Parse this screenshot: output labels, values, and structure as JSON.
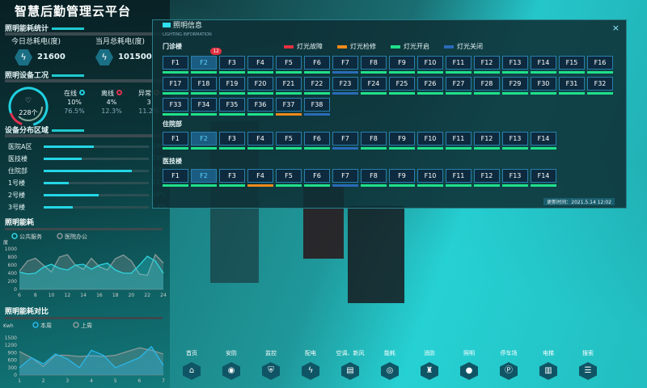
{
  "app": {
    "title": "智慧后勤管理云平台"
  },
  "colors": {
    "fault": "#e03040",
    "repair": "#f08a1a",
    "on": "#20e08a",
    "off": "#2a6bb8"
  },
  "left": {
    "energy_stat": {
      "title": "照明能耗统计",
      "today_label": "今日总耗电(度)",
      "today_value": "21600",
      "month_label": "当月总耗电(度)",
      "month_value": "101500",
      "icon": "lightning-icon"
    },
    "condition": {
      "title": "照明设备工况",
      "total": "228个",
      "items": [
        {
          "label": "在线",
          "value": "10%",
          "ratio": "76.5%",
          "color": "#1fd0e0"
        },
        {
          "label": "离线",
          "value": "4%",
          "ratio": "12.3%",
          "color": "#e03050"
        },
        {
          "label": "异常",
          "value": "3",
          "ratio": "11.2%",
          "color": "#a08a50"
        }
      ]
    },
    "distribution": {
      "title": "设备分布区域",
      "items": [
        {
          "label": "医院A区",
          "pct": 24,
          "text": "24%"
        },
        {
          "label": "医技楼",
          "pct": 18,
          "text": "18%"
        },
        {
          "label": "住院部",
          "pct": 42,
          "text": "42%"
        },
        {
          "label": "1号楼",
          "pct": 12,
          "text": "12%"
        },
        {
          "label": "2号楼",
          "pct": 26,
          "text": "26%"
        },
        {
          "label": "3号楼",
          "pct": 14,
          "text": "14%"
        }
      ]
    }
  },
  "chart_data": [
    {
      "type": "area",
      "title": "照明能耗",
      "ylabel": "度",
      "legend": [
        "公共服务",
        "医院办公"
      ],
      "ylim": [
        0,
        1000
      ],
      "yticks": [
        0,
        200,
        400,
        600,
        800,
        1000
      ],
      "x": [
        6,
        7,
        8,
        9,
        10,
        11,
        12,
        13,
        14,
        15,
        16,
        17,
        18,
        19,
        20,
        21,
        22,
        23,
        24
      ],
      "xticks": [
        6,
        8,
        10,
        12,
        14,
        16,
        18,
        20,
        22,
        24
      ],
      "series": [
        {
          "name": "公共服务",
          "color": "#2fd6e0",
          "values": [
            430,
            380,
            400,
            550,
            620,
            520,
            480,
            600,
            620,
            500,
            600,
            650,
            480,
            400,
            400,
            600,
            820,
            700,
            400
          ]
        },
        {
          "name": "医院办公",
          "color": "#8a9a9a",
          "values": [
            450,
            700,
            770,
            600,
            430,
            800,
            860,
            600,
            500,
            770,
            560,
            480,
            760,
            850,
            700,
            380,
            350,
            860,
            650
          ]
        }
      ]
    },
    {
      "type": "area",
      "title": "照明能耗对比",
      "ylabel": "Kwh",
      "legend": [
        "本周",
        "上周"
      ],
      "ylim": [
        0,
        1500
      ],
      "yticks": [
        0,
        300,
        600,
        900,
        1200,
        1500
      ],
      "x": [
        1,
        1.5,
        2,
        2.5,
        3,
        3.5,
        4,
        4.5,
        5,
        5.5,
        6,
        6.5,
        7
      ],
      "xticks": [
        1,
        2,
        3,
        4,
        5,
        6,
        7
      ],
      "series": [
        {
          "name": "本周",
          "color": "#2bb6e8",
          "values": [
            300,
            700,
            450,
            850,
            650,
            300,
            1000,
            800,
            300,
            500,
            700,
            1150,
            400
          ]
        },
        {
          "name": "上周",
          "color": "#8a9a9a",
          "values": [
            950,
            700,
            350,
            800,
            800,
            750,
            780,
            750,
            800,
            950,
            1100,
            1000,
            850
          ]
        }
      ]
    }
  ],
  "dialog": {
    "title": "照明信息",
    "subtitle": "LIGHTING INFORMATION",
    "close": "×",
    "legend": [
      {
        "label": "灯光故障",
        "key": "fault"
      },
      {
        "label": "灯光检修",
        "key": "repair"
      },
      {
        "label": "灯光开启",
        "key": "on"
      },
      {
        "label": "灯光关闭",
        "key": "off"
      }
    ],
    "groups": [
      {
        "name": "门诊楼",
        "floors": [
          "F1",
          "F2",
          "F3",
          "F4",
          "F5",
          "F6",
          "F7",
          "F8",
          "F9",
          "F10",
          "F11",
          "F12",
          "F13",
          "F14",
          "F15",
          "F16",
          "F17",
          "F18",
          "F19",
          "F20",
          "F21",
          "F22",
          "F23",
          "F24",
          "F25",
          "F26",
          "F27",
          "F28",
          "F29",
          "F30",
          "F31",
          "F32",
          "F33",
          "F34",
          "F35",
          "F36",
          "F37",
          "F38"
        ],
        "status": {
          "F7": "off",
          "F23": "off",
          "F37": "repair",
          "F38": "off"
        },
        "selected": "F2",
        "badge": "12"
      },
      {
        "name": "住院部",
        "floors": [
          "F1",
          "F2",
          "F3",
          "F4",
          "F5",
          "F6",
          "F7",
          "F8",
          "F9",
          "F10",
          "F11",
          "F12",
          "F13",
          "F14"
        ],
        "status": {
          "F7": "off"
        },
        "selected": "F2"
      },
      {
        "name": "医技楼",
        "floors": [
          "F1",
          "F2",
          "F3",
          "F4",
          "F5",
          "F6",
          "F7",
          "F8",
          "F9",
          "F10",
          "F11",
          "F12",
          "F13",
          "F14"
        ],
        "status": {
          "F4": "repair",
          "F7": "off"
        },
        "selected": "F2"
      }
    ],
    "update_time": "更新时间：2021.5.14 12:02"
  },
  "nav": [
    {
      "label": "首页",
      "icon": "home-icon",
      "glyph": "⌂"
    },
    {
      "label": "安防",
      "icon": "camera-icon",
      "glyph": "◉"
    },
    {
      "label": "监控",
      "icon": "shield-icon",
      "glyph": "⛨"
    },
    {
      "label": "配电",
      "icon": "lightning-icon",
      "glyph": "ϟ"
    },
    {
      "label": "空调、新风",
      "icon": "air-conditioner-icon",
      "glyph": "▤"
    },
    {
      "label": "能耗",
      "icon": "energy-icon",
      "glyph": "◎"
    },
    {
      "label": "消防",
      "icon": "hydrant-icon",
      "glyph": "♜"
    },
    {
      "label": "照明",
      "icon": "bulb-icon",
      "glyph": "●"
    },
    {
      "label": "停车场",
      "icon": "parking-icon",
      "glyph": "Ⓟ"
    },
    {
      "label": "电梯",
      "icon": "elevator-icon",
      "glyph": "▥"
    },
    {
      "label": "搜索",
      "icon": "search-icon",
      "glyph": "☰"
    }
  ]
}
